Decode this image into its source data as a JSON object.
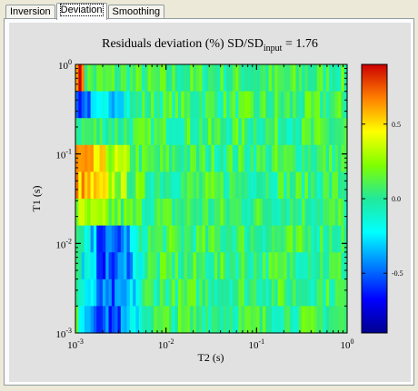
{
  "tabs": [
    {
      "label": "Inversion",
      "active": false
    },
    {
      "label": "Deviation",
      "active": true
    },
    {
      "label": "Smoothing",
      "active": false
    }
  ],
  "chart_data": {
    "type": "heatmap",
    "title_prefix": "Residuals deviation (%) SD/SD",
    "title_sub": "input",
    "title_suffix": " = 1.76",
    "xlabel": "T2 (s)",
    "ylabel": "T1 (s)",
    "x_scale": "log",
    "y_scale": "log",
    "xlim": [
      0.001,
      1
    ],
    "ylim": [
      0.001,
      1
    ],
    "x_ticks": [
      {
        "base": "10",
        "exp": "-3"
      },
      {
        "base": "10",
        "exp": "-2"
      },
      {
        "base": "10",
        "exp": "-1"
      },
      {
        "base": "10",
        "exp": "0"
      }
    ],
    "y_ticks": [
      {
        "base": "10",
        "exp": "-3"
      },
      {
        "base": "10",
        "exp": "-2"
      },
      {
        "base": "10",
        "exp": "-1"
      },
      {
        "base": "10",
        "exp": "0"
      }
    ],
    "colorbar": {
      "min": -0.9,
      "max": 0.9,
      "ticks": [
        "0.5",
        "0.0",
        "-0.5"
      ],
      "tick_values": [
        0.5,
        0.0,
        -0.5
      ],
      "colormap": "jet"
    },
    "colors": {
      "background": "#e1e1e1",
      "axis": "#000000"
    }
  }
}
